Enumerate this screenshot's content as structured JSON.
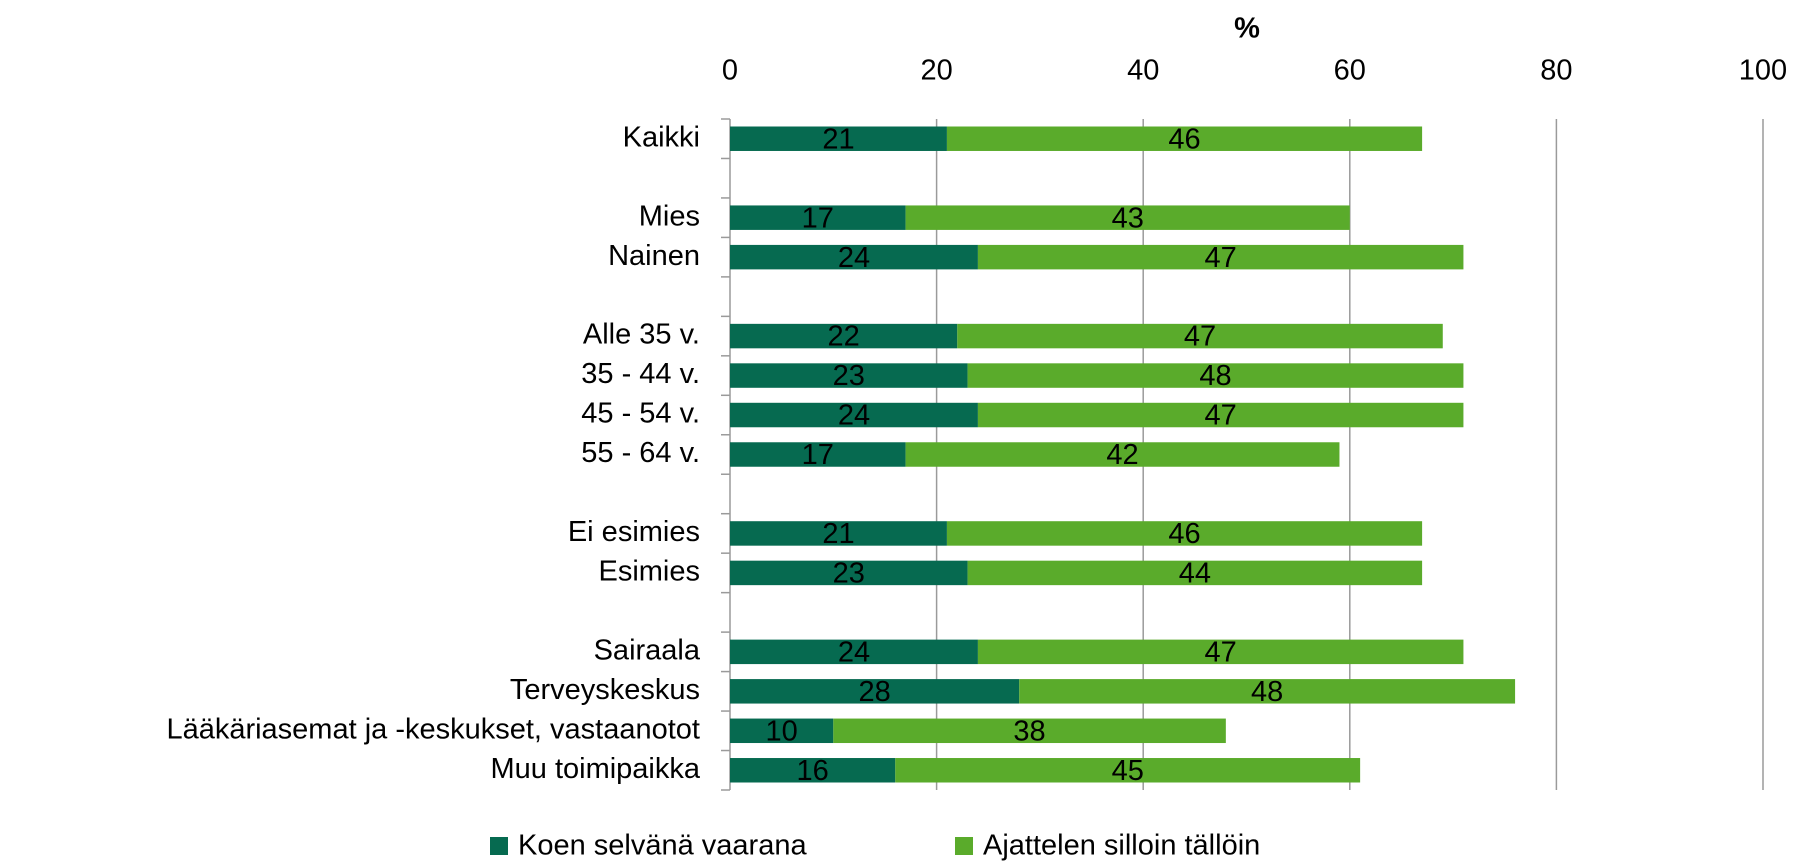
{
  "chart_data": {
    "type": "bar",
    "orientation": "horizontal",
    "stacked": true,
    "x_axis_label": "%",
    "categories": [
      "Kaikki",
      null,
      "Mies",
      "Nainen",
      null,
      "Alle 35 v.",
      "35 - 44 v.",
      "45 - 54 v.",
      "55 - 64 v.",
      null,
      "Ei esimies",
      "Esimies",
      null,
      "Sairaala",
      "Terveyskeskus",
      "Lääkäriasemat ja -keskukset, vastaanotot",
      "Muu toimipaikka"
    ],
    "series": [
      {
        "name": "Koen selvänä vaarana",
        "color": "#066a50",
        "values": [
          21,
          null,
          17,
          24,
          null,
          22,
          23,
          24,
          17,
          null,
          21,
          23,
          null,
          24,
          28,
          10,
          16
        ]
      },
      {
        "name": "Ajattelen silloin tällöin",
        "color": "#5aab2b",
        "values": [
          46,
          null,
          43,
          47,
          null,
          47,
          48,
          47,
          42,
          null,
          46,
          44,
          null,
          47,
          48,
          38,
          45
        ]
      }
    ],
    "xlim": [
      0,
      100
    ],
    "xticks": [
      0,
      20,
      40,
      60,
      80,
      100
    ],
    "grid": true,
    "legend": "bottom"
  }
}
